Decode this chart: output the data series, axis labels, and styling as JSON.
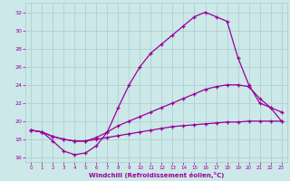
{
  "xlabel": "Windchill (Refroidissement éolien,°C)",
  "bg_color": "#cce8e8",
  "grid_color": "#aacccc",
  "line_color": "#990099",
  "xlim": [
    -0.5,
    23.5
  ],
  "ylim": [
    15.5,
    33.0
  ],
  "xticks": [
    0,
    1,
    2,
    3,
    4,
    5,
    6,
    7,
    8,
    9,
    10,
    11,
    12,
    13,
    14,
    15,
    16,
    17,
    18,
    19,
    20,
    21,
    22,
    23
  ],
  "yticks": [
    16,
    18,
    20,
    22,
    24,
    26,
    28,
    30,
    32
  ],
  "curve1_x": [
    0,
    1,
    2,
    3,
    4,
    5,
    6,
    7,
    8,
    9,
    10,
    11,
    12,
    13,
    14,
    15,
    16,
    17,
    18,
    19,
    20,
    21,
    22,
    23
  ],
  "curve1_y": [
    19.0,
    18.8,
    18.3,
    18.0,
    17.8,
    17.8,
    18.0,
    18.2,
    18.4,
    18.6,
    18.8,
    19.0,
    19.2,
    19.4,
    19.5,
    19.6,
    19.7,
    19.8,
    19.9,
    19.9,
    20.0,
    20.0,
    20.0,
    20.0
  ],
  "curve2_x": [
    0,
    1,
    2,
    3,
    4,
    5,
    6,
    7,
    8,
    9,
    10,
    11,
    12,
    13,
    14,
    15,
    16,
    17,
    18,
    19,
    20,
    21,
    22,
    23
  ],
  "curve2_y": [
    19.0,
    18.8,
    18.3,
    18.0,
    17.8,
    17.8,
    18.2,
    18.8,
    19.5,
    20.0,
    20.5,
    21.0,
    21.5,
    22.0,
    22.5,
    23.0,
    23.5,
    23.8,
    24.0,
    24.0,
    23.8,
    22.5,
    21.5,
    21.0
  ],
  "curve3_x": [
    0,
    1,
    2,
    3,
    4,
    5,
    6,
    7,
    8,
    9,
    10,
    11,
    12,
    13,
    14,
    15,
    16,
    17,
    18,
    19,
    20,
    21,
    22,
    23
  ],
  "curve3_y": [
    19.0,
    18.8,
    17.8,
    16.7,
    16.3,
    16.5,
    17.3,
    18.8,
    21.5,
    24.0,
    26.0,
    27.5,
    28.5,
    29.5,
    30.5,
    31.5,
    32.0,
    31.5,
    31.0,
    27.0,
    24.0,
    22.0,
    21.5,
    20.0
  ]
}
